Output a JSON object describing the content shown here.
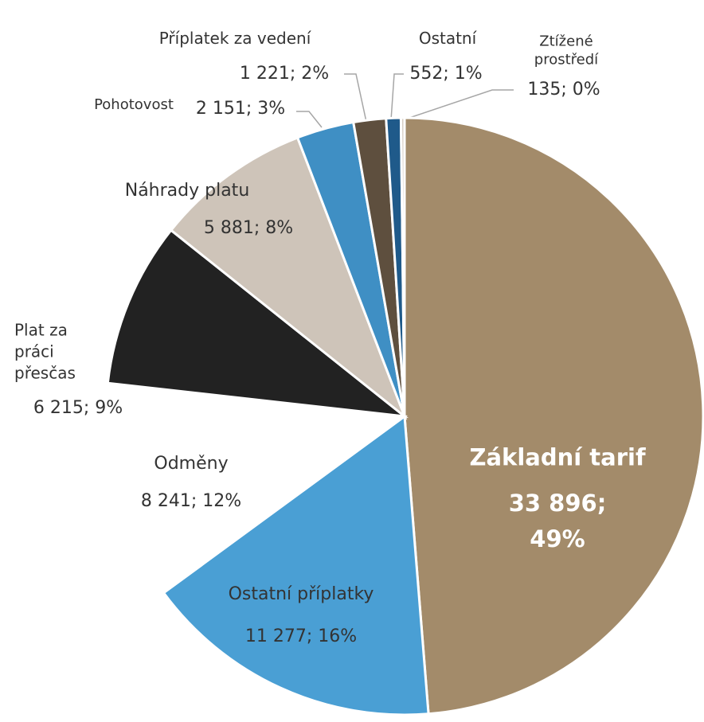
{
  "chart_data": {
    "type": "pie",
    "categories": [
      "Základní tarif",
      "Ostatní příplatky",
      "Odměny",
      "Plat za práci přesčas",
      "Náhrady platu",
      "Pohotovost",
      "Příplatek za vedení",
      "Ostatní",
      "Ztížené prostředí"
    ],
    "values": [
      33896,
      11277,
      8241,
      6215,
      5881,
      2151,
      1221,
      552,
      135
    ],
    "value_labels": [
      "33 896; 49%",
      "11 277; 16%",
      "8 241; 12%",
      "6 215; 9%",
      "5 881; 8%",
      "2 151; 3%",
      "1 221; 2%",
      "552; 1%",
      "135; 0%"
    ],
    "colors": [
      "#a38b6a",
      "#4a9fd4",
      "#ffffff",
      "#222222",
      "#cec4b9",
      "#3f8fc4",
      "#5e4f3e",
      "#1f5a8a",
      "#d6cdc3"
    ]
  }
}
